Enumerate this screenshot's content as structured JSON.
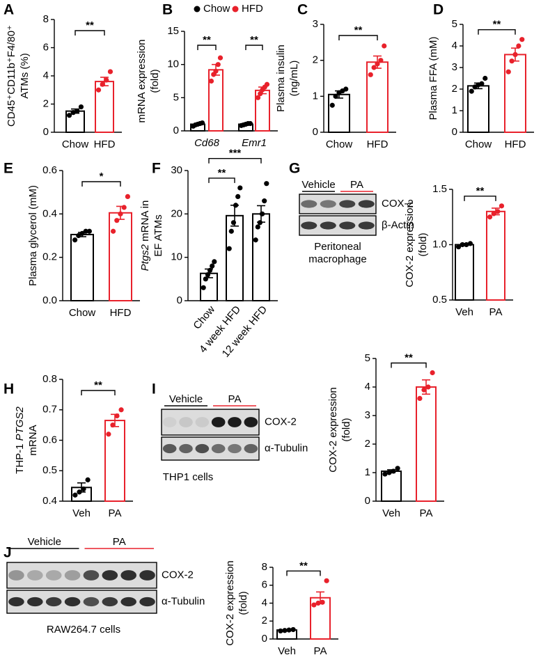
{
  "chart_data": [
    {
      "type": "bar",
      "panel": "A",
      "ylabel": [
        [
          "CD45⁺CD11b⁺F4/80⁺"
        ],
        [
          "ATMs (%)"
        ]
      ],
      "categories": [
        "Chow",
        "HFD"
      ],
      "values": [
        1.5,
        3.6
      ],
      "errors": [
        0.15,
        0.3
      ],
      "points": [
        [
          1.2,
          1.4,
          1.5,
          1.8
        ],
        [
          3.0,
          3.4,
          3.7,
          4.3
        ]
      ],
      "colors": [
        "#000000",
        "#e8212b"
      ],
      "ylim": [
        0,
        8
      ],
      "yticks": [
        0,
        2,
        4,
        6,
        8
      ],
      "significance": [
        {
          "between": [
            "Chow",
            "HFD"
          ],
          "label": "**"
        }
      ]
    },
    {
      "type": "grouped_bar",
      "panel": "B",
      "ylabel": [
        [
          "mRNA expression"
        ],
        [
          "(fold)"
        ]
      ],
      "categories": [
        "Cd68",
        "Emr1"
      ],
      "category_style": "italic",
      "legend": true,
      "series": [
        {
          "name": "Chow",
          "color": "#000000",
          "values": [
            1.0,
            1.0
          ],
          "errors": [
            0.1,
            0.08
          ],
          "points": [
            [
              0.7,
              0.9,
              1.0,
              1.1,
              1.2
            ],
            [
              0.8,
              0.9,
              1.0,
              1.1,
              1.1
            ]
          ]
        },
        {
          "name": "HFD",
          "color": "#e8212b",
          "values": [
            9.2,
            6.1
          ],
          "errors": [
            0.8,
            0.5
          ],
          "points": [
            [
              7.5,
              8.5,
              9.0,
              10.0,
              11.0
            ],
            [
              5.0,
              5.6,
              6.2,
              6.6,
              7.0
            ]
          ]
        }
      ],
      "ylim": [
        0,
        15
      ],
      "yticks": [
        0,
        5,
        10,
        15
      ],
      "significance": [
        {
          "category": "Cd68",
          "between": [
            "Chow",
            "HFD"
          ],
          "label": "**"
        },
        {
          "category": "Emr1",
          "between": [
            "Chow",
            "HFD"
          ],
          "label": "**"
        }
      ]
    },
    {
      "type": "bar",
      "panel": "C",
      "ylabel": [
        [
          "Plasma insulin"
        ],
        [
          "(ng/mL)"
        ]
      ],
      "categories": [
        "Chow",
        "HFD"
      ],
      "values": [
        1.05,
        1.95
      ],
      "errors": [
        0.1,
        0.17
      ],
      "points": [
        [
          0.75,
          1.0,
          1.1,
          1.15,
          1.2
        ],
        [
          1.6,
          1.8,
          1.9,
          2.0,
          2.4
        ]
      ],
      "colors": [
        "#000000",
        "#e8212b"
      ],
      "ylim": [
        0,
        3
      ],
      "yticks": [
        0,
        1,
        2,
        3
      ],
      "significance": [
        {
          "between": [
            "Chow",
            "HFD"
          ],
          "label": "**"
        }
      ]
    },
    {
      "type": "bar",
      "panel": "D",
      "ylabel": [
        [
          "Plasma FFA (mM)"
        ]
      ],
      "categories": [
        "Chow",
        "HFD"
      ],
      "values": [
        2.15,
        3.6
      ],
      "errors": [
        0.13,
        0.3
      ],
      "points": [
        [
          1.9,
          2.1,
          2.2,
          2.25,
          2.5
        ],
        [
          2.8,
          3.3,
          3.6,
          4.0,
          4.3
        ]
      ],
      "colors": [
        "#000000",
        "#e8212b"
      ],
      "ylim": [
        0,
        5
      ],
      "yticks": [
        0,
        1,
        2,
        3,
        4,
        5
      ],
      "significance": [
        {
          "between": [
            "Chow",
            "HFD"
          ],
          "label": "**"
        }
      ]
    },
    {
      "type": "bar",
      "panel": "E",
      "ylabel": [
        [
          "Plasma glycerol (mM)"
        ]
      ],
      "categories": [
        "Chow",
        "HFD"
      ],
      "values": [
        0.305,
        0.405
      ],
      "errors": [
        0.01,
        0.03
      ],
      "points": [
        [
          0.28,
          0.3,
          0.31,
          0.32,
          0.32
        ],
        [
          0.32,
          0.37,
          0.4,
          0.43,
          0.48
        ]
      ],
      "colors": [
        "#000000",
        "#e8212b"
      ],
      "ylim": [
        0,
        0.6
      ],
      "yticks": [
        {
          "value": 0,
          "label": "0.0"
        },
        0.2,
        0.4,
        0.6
      ],
      "significance": [
        {
          "between": [
            "Chow",
            "HFD"
          ],
          "label": "*"
        }
      ]
    },
    {
      "type": "bar",
      "panel": "F",
      "ylabel": [
        [
          {
            "italic": "Ptgs2"
          },
          " mRNA in"
        ],
        [
          "EF ATMs"
        ]
      ],
      "categories": [
        "Chow",
        "4 week HFD",
        "12 week HFD"
      ],
      "values": [
        6.3,
        19.6,
        20.0
      ],
      "errors": [
        1.0,
        2.4,
        1.9
      ],
      "points": [
        [
          3,
          5,
          6,
          7,
          8,
          9
        ],
        [
          12,
          16,
          18,
          22,
          24,
          26
        ],
        [
          14,
          17,
          18,
          20,
          23,
          27
        ]
      ],
      "colors": [
        "#000000",
        "#000000",
        "#000000"
      ],
      "ylim": [
        0,
        30
      ],
      "yticks": [
        0,
        10,
        20,
        30
      ],
      "significance": [
        {
          "between": [
            "Chow",
            "4 week HFD"
          ],
          "label": "**"
        },
        {
          "between": [
            "Chow",
            "12 week HFD"
          ],
          "label": "***"
        }
      ]
    },
    {
      "type": "bar",
      "panel": "G",
      "ylabel": [
        [
          "COX-2 expression"
        ],
        [
          "(fold)"
        ]
      ],
      "categories": [
        "Veh",
        "PA"
      ],
      "values": [
        1.0,
        1.3
      ],
      "errors": [
        0.01,
        0.03
      ],
      "points": [
        [
          0.98,
          1.0,
          1.0,
          1.01
        ],
        [
          1.25,
          1.28,
          1.3,
          1.35
        ]
      ],
      "colors": [
        "#000000",
        "#e8212b"
      ],
      "ylim": [
        0.5,
        1.5
      ],
      "yticks": [
        0.5,
        {
          "value": 1,
          "label": "1.0"
        },
        1.5
      ],
      "significance": [
        {
          "between": [
            "Veh",
            "PA"
          ],
          "label": "**"
        }
      ]
    },
    {
      "type": "bar",
      "panel": "H",
      "ylabel": [
        [
          "THP-1 ",
          {
            "italic": "PTGS2"
          }
        ],
        [
          "mRNA"
        ]
      ],
      "categories": [
        "Veh",
        "PA"
      ],
      "values": [
        0.445,
        0.665
      ],
      "errors": [
        0.015,
        0.02
      ],
      "points": [
        [
          0.42,
          0.43,
          0.44,
          0.47
        ],
        [
          0.62,
          0.65,
          0.68,
          0.7
        ]
      ],
      "colors": [
        "#000000",
        "#e8212b"
      ],
      "ylim": [
        0.4,
        0.8
      ],
      "yticks": [
        0.4,
        0.5,
        0.6,
        0.7,
        0.8
      ],
      "significance": [
        {
          "between": [
            "Veh",
            "PA"
          ],
          "label": "**"
        }
      ]
    },
    {
      "type": "bar",
      "panel": "I",
      "ylabel": [
        [
          "COX-2 expression"
        ],
        [
          "(fold)"
        ]
      ],
      "categories": [
        "Veh",
        "PA"
      ],
      "values": [
        1.05,
        4.0
      ],
      "errors": [
        0.05,
        0.25
      ],
      "points": [
        [
          0.95,
          1.0,
          1.05,
          1.15
        ],
        [
          3.6,
          3.9,
          4.0,
          4.5
        ]
      ],
      "colors": [
        "#000000",
        "#e8212b"
      ],
      "ylim": [
        0,
        5
      ],
      "yticks": [
        0,
        1,
        2,
        3,
        4,
        5
      ],
      "significance": [
        {
          "between": [
            "Veh",
            "PA"
          ],
          "label": "**"
        }
      ]
    },
    {
      "type": "bar",
      "panel": "J",
      "ylabel": [
        [
          "COX-2 expression"
        ],
        [
          "(fold)"
        ]
      ],
      "categories": [
        "Veh",
        "PA"
      ],
      "values": [
        1.0,
        4.6
      ],
      "errors": [
        0.05,
        0.65
      ],
      "points": [
        [
          0.9,
          0.95,
          1.0,
          1.05
        ],
        [
          3.8,
          4.0,
          4.1,
          6.5
        ]
      ],
      "colors": [
        "#000000",
        "#e8212b"
      ],
      "ylim": [
        0,
        8
      ],
      "yticks": [
        0,
        2,
        4,
        6,
        8
      ],
      "significance": [
        {
          "between": [
            "Veh",
            "PA"
          ],
          "label": "**"
        }
      ]
    }
  ],
  "blots": [
    {
      "groups": [
        "Vehicle",
        "PA"
      ],
      "group_colors": [
        "#000000",
        "#e8212b"
      ],
      "bands": [
        "COX-2",
        "β-Actin"
      ],
      "caption": [
        "Peritoneal",
        "macrophage"
      ]
    },
    {
      "groups": [
        "Vehicle",
        "PA"
      ],
      "group_colors": [
        "#000000",
        "#e8212b"
      ],
      "bands": [
        "COX-2",
        "α-Tubulin"
      ],
      "caption": [
        "THP1 cells"
      ]
    },
    {
      "groups": [
        "Vehicle",
        "PA"
      ],
      "group_colors": [
        "#000000",
        "#e8212b"
      ],
      "bands": [
        "COX-2",
        "α-Tubulin"
      ],
      "caption": [
        "RAW264.7 cells"
      ]
    }
  ]
}
